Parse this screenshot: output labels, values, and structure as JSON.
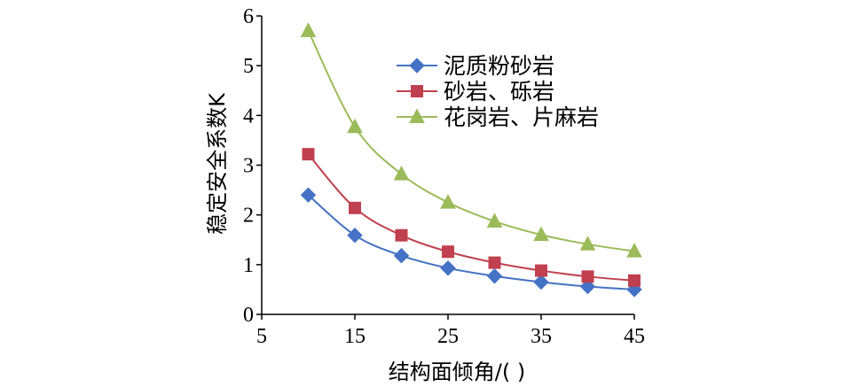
{
  "chart_data": {
    "type": "line",
    "xlabel": "结构面倾角/(  )",
    "ylabel": "稳定安全系数K",
    "xlim": [
      5,
      45
    ],
    "ylim": [
      0,
      6
    ],
    "xticks": [
      5,
      15,
      25,
      35,
      45
    ],
    "yticks": [
      0,
      1,
      2,
      3,
      4,
      5,
      6
    ],
    "grid": false,
    "legend_position": "top-right",
    "x": [
      10,
      15,
      20,
      25,
      30,
      35,
      40,
      45
    ],
    "series": [
      {
        "name": "泥质粉砂岩",
        "color": "#4472C4",
        "marker": "diamond",
        "values": [
          2.4,
          1.59,
          1.18,
          0.93,
          0.77,
          0.65,
          0.56,
          0.5
        ]
      },
      {
        "name": "砂岩、砾岩",
        "color": "#C0404F",
        "marker": "square",
        "values": [
          3.22,
          2.14,
          1.59,
          1.26,
          1.04,
          0.88,
          0.76,
          0.68
        ]
      },
      {
        "name": "花岗岩、片麻岩",
        "color": "#9BBB59",
        "marker": "triangle",
        "values": [
          5.7,
          3.77,
          2.82,
          2.25,
          1.87,
          1.6,
          1.41,
          1.27
        ]
      }
    ]
  }
}
